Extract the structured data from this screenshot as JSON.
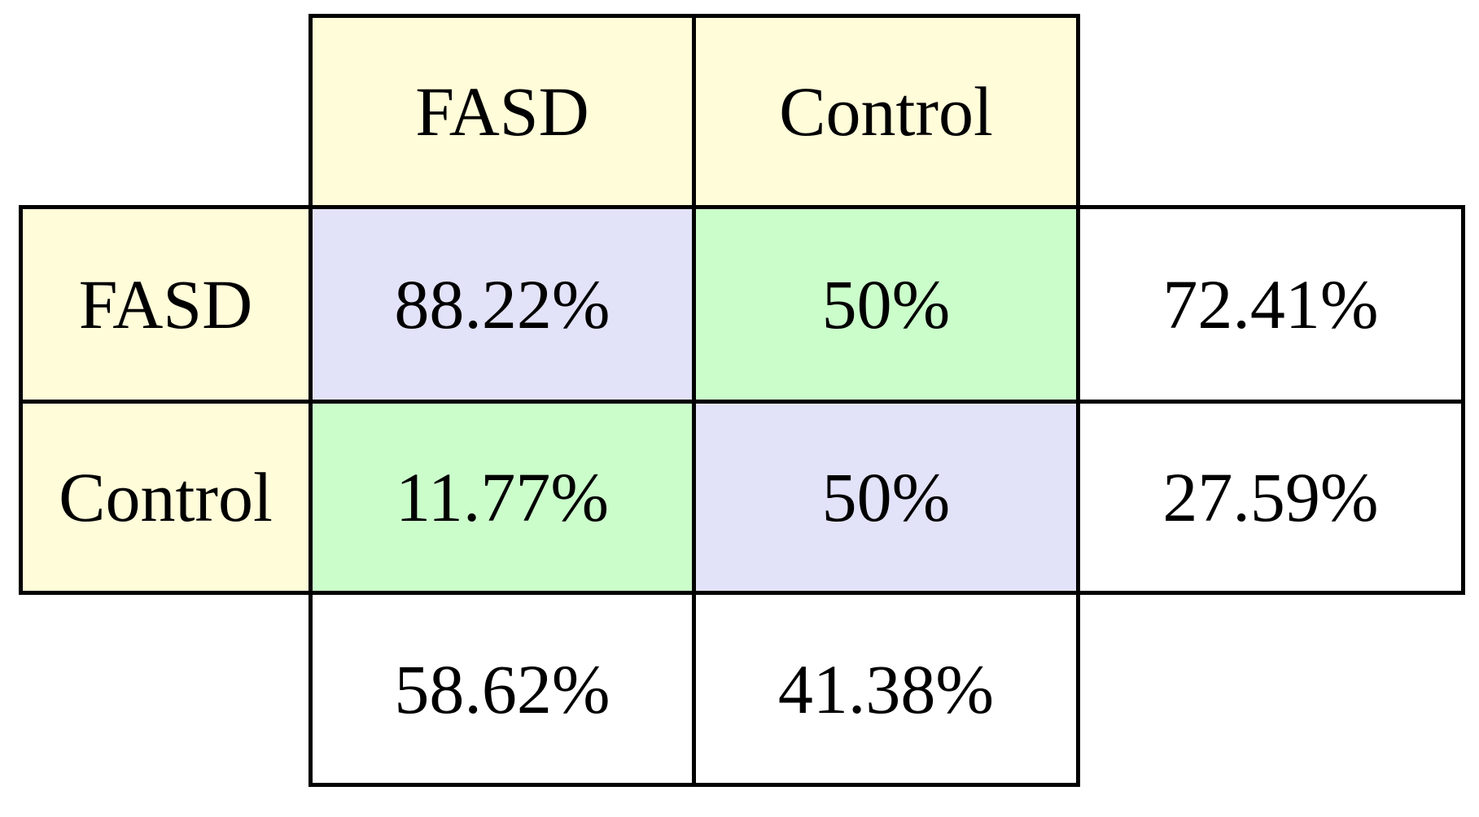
{
  "colors": {
    "page-bg": "#FFFFFF",
    "header-bg": "#FFFCD9",
    "diagonal-bg": "#E2E2F8",
    "offdiag-bg": "#CBFDCB",
    "plain-bg": "#FFFFFF",
    "border": "#000000",
    "text": "#000000"
  },
  "matrix": {
    "col_headers": [
      "FASD",
      "Control"
    ],
    "row_headers": [
      "FASD",
      "Control"
    ],
    "rows": [
      {
        "values": [
          "88.22%",
          "50%",
          "72.41%"
        ]
      },
      {
        "values": [
          "11.77%",
          "50%",
          "27.59%"
        ]
      }
    ],
    "totals": [
      "58.62%",
      "41.38%"
    ]
  },
  "chart_data": {
    "type": "table",
    "subtype": "confusion-matrix",
    "columns": [
      "FASD",
      "Control"
    ],
    "rows": [
      "FASD",
      "Control"
    ],
    "cells": [
      [
        "88.22%",
        "50%"
      ],
      [
        "11.77%",
        "50%"
      ]
    ],
    "row_totals": {
      "FASD": "72.41%",
      "Control": "27.59%"
    },
    "column_totals": {
      "FASD": "58.62%",
      "Control": "41.38%"
    },
    "cell_backgrounds": [
      [
        "#E2E2F8",
        "#CBFDCB"
      ],
      [
        "#CBFDCB",
        "#E2E2F8"
      ]
    ],
    "header_background": "#FFFCD9",
    "grid": "on",
    "legend": "none"
  }
}
